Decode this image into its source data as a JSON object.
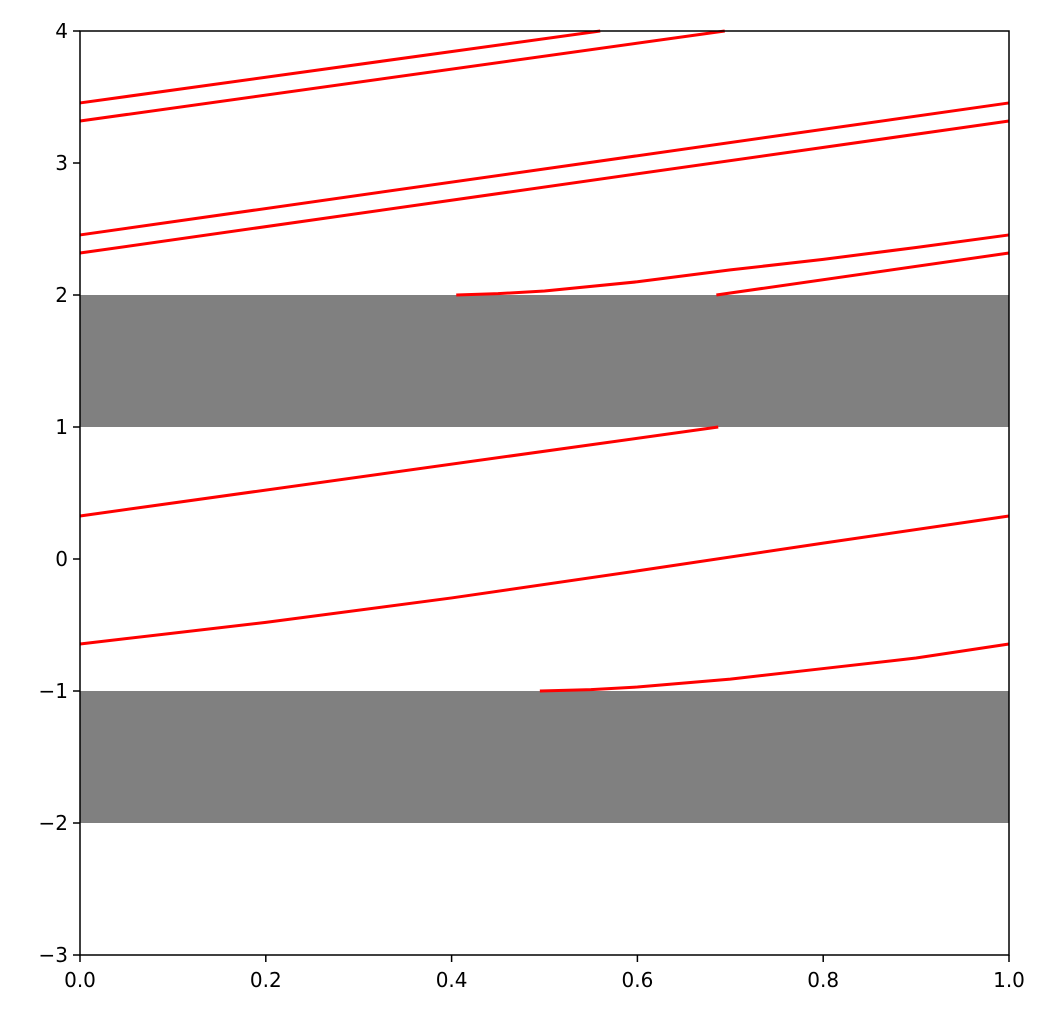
{
  "chart_data": {
    "type": "line",
    "xlim": [
      0,
      1
    ],
    "ylim": [
      -3,
      4
    ],
    "xticks": [
      {
        "value": 0,
        "label": "0.0"
      },
      0.2,
      0.4,
      0.6,
      0.8,
      {
        "value": 1,
        "label": "1.0"
      }
    ],
    "yticks": [
      {
        "value": -3,
        "label": "−3"
      },
      {
        "value": -2,
        "label": "−2"
      },
      {
        "value": -1,
        "label": "−1"
      },
      0,
      1,
      2,
      3,
      4
    ],
    "spans": [
      {
        "from": 1,
        "to": 2,
        "color": "#808080"
      },
      {
        "from": -2,
        "to": -1,
        "color": "#808080"
      }
    ],
    "series": [
      {
        "color": "#ff0000",
        "x": [
          0,
          0.56
        ],
        "values": [
          3.455,
          4.0
        ]
      },
      {
        "color": "#ff0000",
        "x": [
          0,
          0.694
        ],
        "values": [
          3.318,
          4.0
        ]
      },
      {
        "color": "#ff0000",
        "x": [
          0,
          1
        ],
        "values": [
          2.455,
          3.455
        ]
      },
      {
        "color": "#ff0000",
        "x": [
          0,
          1
        ],
        "values": [
          2.318,
          3.318
        ]
      },
      {
        "color": "#ff0000",
        "x": [
          0.405,
          0.45,
          0.5,
          0.6,
          0.7,
          0.8,
          0.9,
          1
        ],
        "values": [
          2.0,
          2.01,
          2.03,
          2.1,
          2.19,
          2.27,
          2.36,
          2.455
        ]
      },
      {
        "color": "#ff0000",
        "x": [
          0.685,
          1
        ],
        "values": [
          2.0,
          2.318
        ]
      },
      {
        "color": "#ff0000",
        "x": [
          0,
          0.687
        ],
        "values": [
          0.326,
          1.0
        ]
      },
      {
        "color": "#ff0000",
        "x": [
          0,
          0.2,
          0.4,
          0.6,
          0.8,
          1
        ],
        "values": [
          -0.644,
          -0.48,
          -0.295,
          -0.09,
          0.12,
          0.326
        ]
      },
      {
        "color": "#ff0000",
        "x": [
          0.495,
          0.55,
          0.6,
          0.7,
          0.8,
          0.9,
          1
        ],
        "values": [
          -1.0,
          -0.99,
          -0.97,
          -0.91,
          -0.83,
          -0.75,
          -0.644
        ]
      }
    ]
  }
}
